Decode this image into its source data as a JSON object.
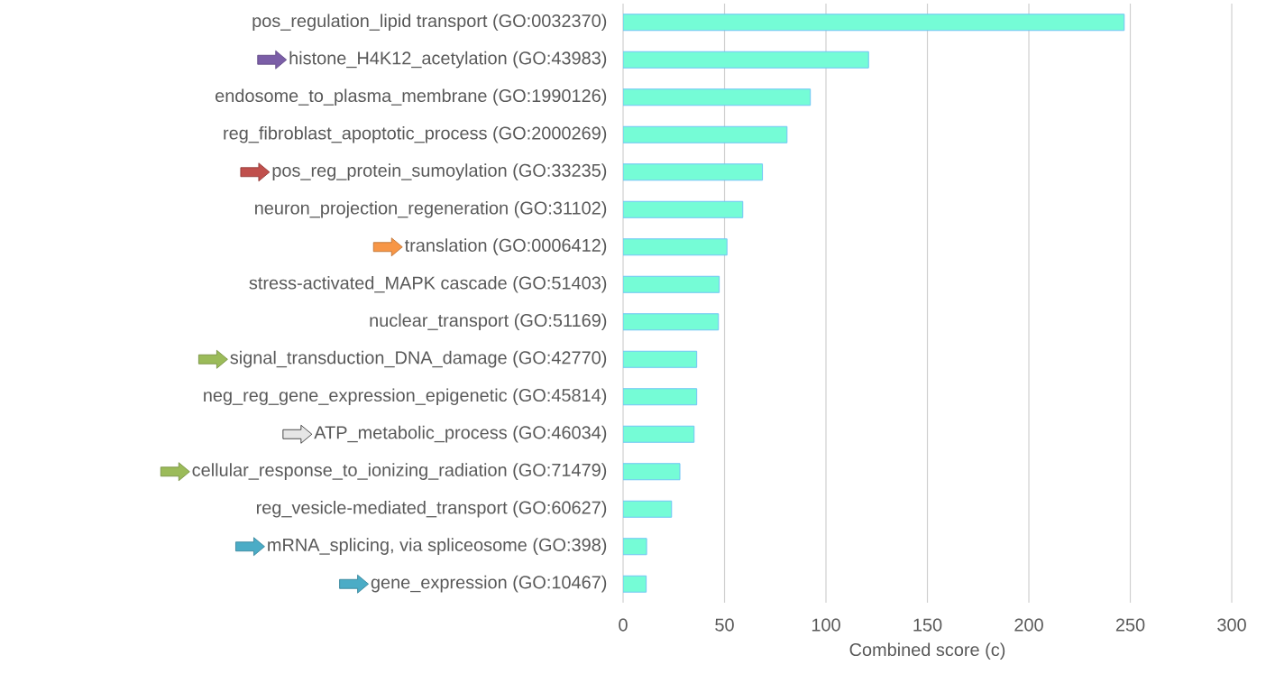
{
  "chart_data": {
    "type": "bar",
    "orientation": "horizontal",
    "xlabel": "Combined score (c)",
    "categories": [
      "pos_regulation_lipid transport (GO:0032370)",
      "histone_H4K12_acetylation (GO:43983)",
      "endosome_to_plasma_membrane (GO:1990126)",
      "reg_fibroblast_apoptotic_process (GO:2000269)",
      "pos_reg_protein_sumoylation (GO:33235)",
      "neuron_projection_regeneration (GO:31102)",
      "translation (GO:0006412)",
      "stress-activated_MAPK cascade (GO:51403)",
      "nuclear_transport (GO:51169)",
      "signal_transduction_DNA_damage (GO:42770)",
      "neg_reg_gene_expression_epigenetic (GO:45814)",
      "ATP_metabolic_process (GO:46034)",
      "cellular_response_to_ionizing_radiation (GO:71479)",
      "reg_vesicle-mediated_transport (GO:60627)",
      "mRNA_splicing, via spliceosome (GO:398)",
      "gene_expression (GO:10467)"
    ],
    "values": [
      247,
      121,
      92.3,
      80.8,
      68.7,
      59,
      51.2,
      47.4,
      47,
      36.3,
      36.3,
      35,
      28,
      23.9,
      11.6,
      11.4
    ],
    "color": "#75fcd6",
    "xlim": [
      0,
      300
    ],
    "xticks": [
      0,
      50,
      100,
      150,
      200,
      250,
      300
    ],
    "grid": "x"
  }
}
